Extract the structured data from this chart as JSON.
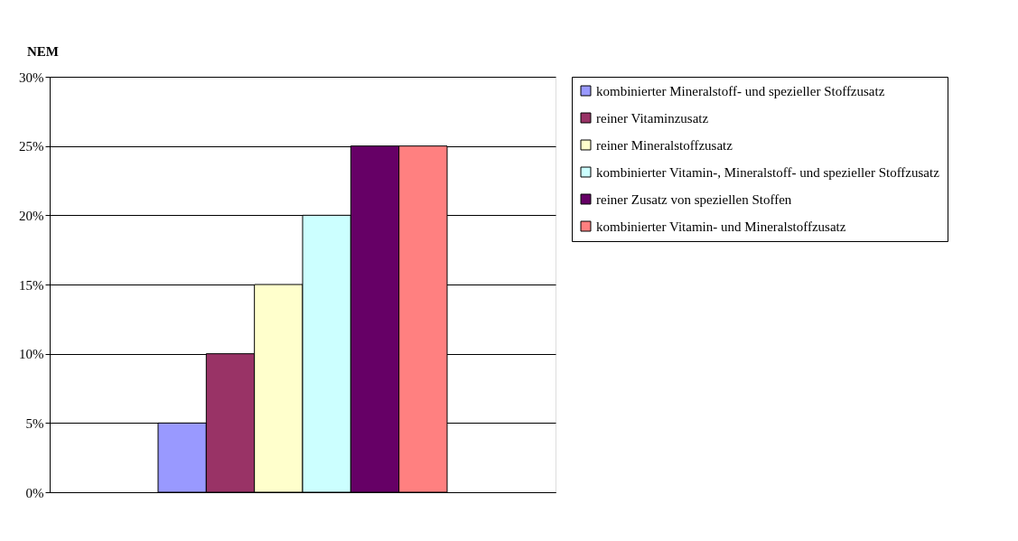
{
  "chart_data": {
    "type": "bar",
    "ylabel": "NEM",
    "categories": [
      null
    ],
    "series": [
      {
        "name": "kombinierter Mineralstoff- und spezieller Stoffzusatz",
        "color": "#9999ff",
        "values": [
          5
        ]
      },
      {
        "name": "reiner Vitaminzusatz",
        "color": "#993366",
        "values": [
          10
        ]
      },
      {
        "name": "reiner Mineralstoffzusatz",
        "color": "#ffffcc",
        "values": [
          15
        ]
      },
      {
        "name": "kombinierter Vitamin-, Mineralstoff- und spezieller Stoffzusatz",
        "color": "#ccffff",
        "values": [
          20
        ]
      },
      {
        "name": "reiner Zusatz von speziellen Stoffen",
        "color": "#660066",
        "values": [
          25
        ]
      },
      {
        "name": "kombinierter Vitamin- und Mineralstoffzusatz",
        "color": "#ff8080",
        "values": [
          25
        ]
      }
    ],
    "ylim": [
      0,
      30
    ],
    "yticks": [
      {
        "value": 0,
        "label": "0%"
      },
      {
        "value": 5,
        "label": "5%"
      },
      {
        "value": 10,
        "label": "10%"
      },
      {
        "value": 15,
        "label": "15%"
      },
      {
        "value": 20,
        "label": "20%"
      },
      {
        "value": 25,
        "label": "25%"
      },
      {
        "value": 30,
        "label": "30%"
      }
    ],
    "grid": "y",
    "legend": "right"
  }
}
